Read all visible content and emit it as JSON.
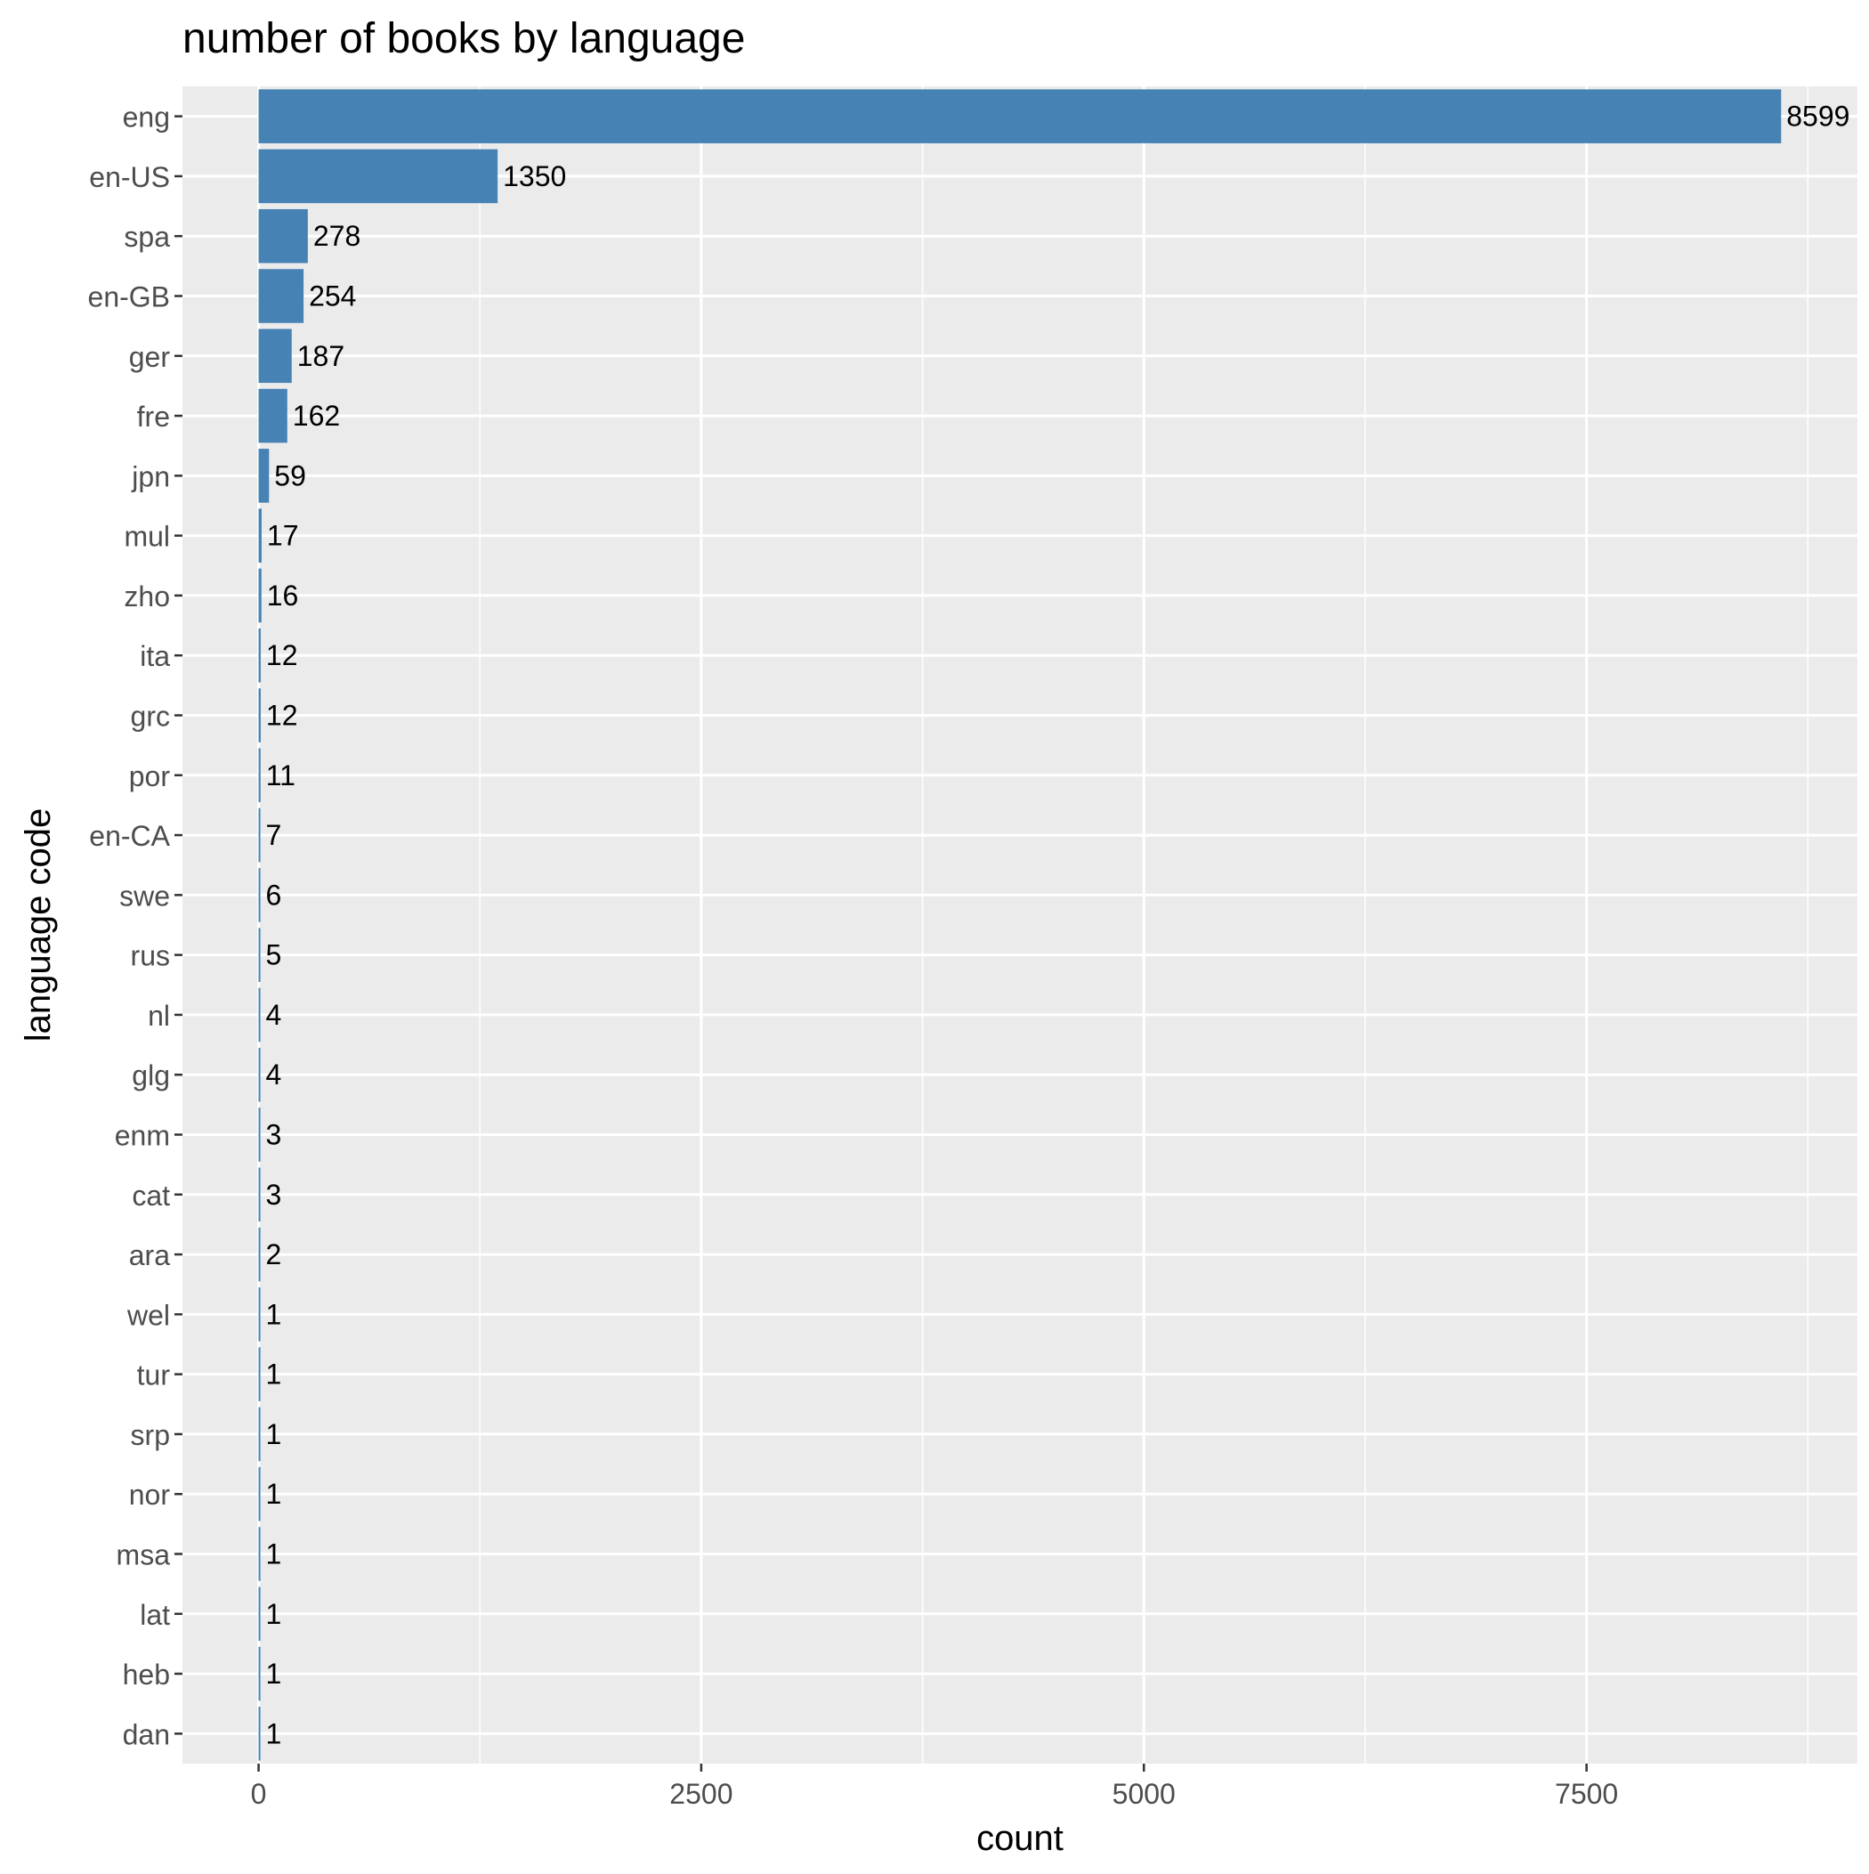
{
  "chart_data": {
    "type": "bar",
    "orientation": "horizontal",
    "title": "number of books by language",
    "xlabel": "count",
    "ylabel": "language code",
    "xlim": [
      -430,
      9030
    ],
    "x_ticks": [
      0,
      2500,
      5000,
      7500
    ],
    "x_minor_ticks": [
      1250,
      3750,
      6250,
      8750
    ],
    "grid": true,
    "legend": "none",
    "bar_color": "#4682B4",
    "panel_color": "#EBEBEB",
    "grid_color": "#FFFFFF",
    "categories": [
      "eng",
      "en-US",
      "spa",
      "en-GB",
      "ger",
      "fre",
      "jpn",
      "mul",
      "zho",
      "ita",
      "grc",
      "por",
      "en-CA",
      "swe",
      "rus",
      "nl",
      "glg",
      "enm",
      "cat",
      "ara",
      "wel",
      "tur",
      "srp",
      "nor",
      "msa",
      "lat",
      "heb",
      "dan"
    ],
    "values": [
      8599,
      1350,
      278,
      254,
      187,
      162,
      59,
      17,
      16,
      12,
      12,
      11,
      7,
      6,
      5,
      4,
      4,
      3,
      3,
      2,
      1,
      1,
      1,
      1,
      1,
      1,
      1,
      1
    ]
  }
}
